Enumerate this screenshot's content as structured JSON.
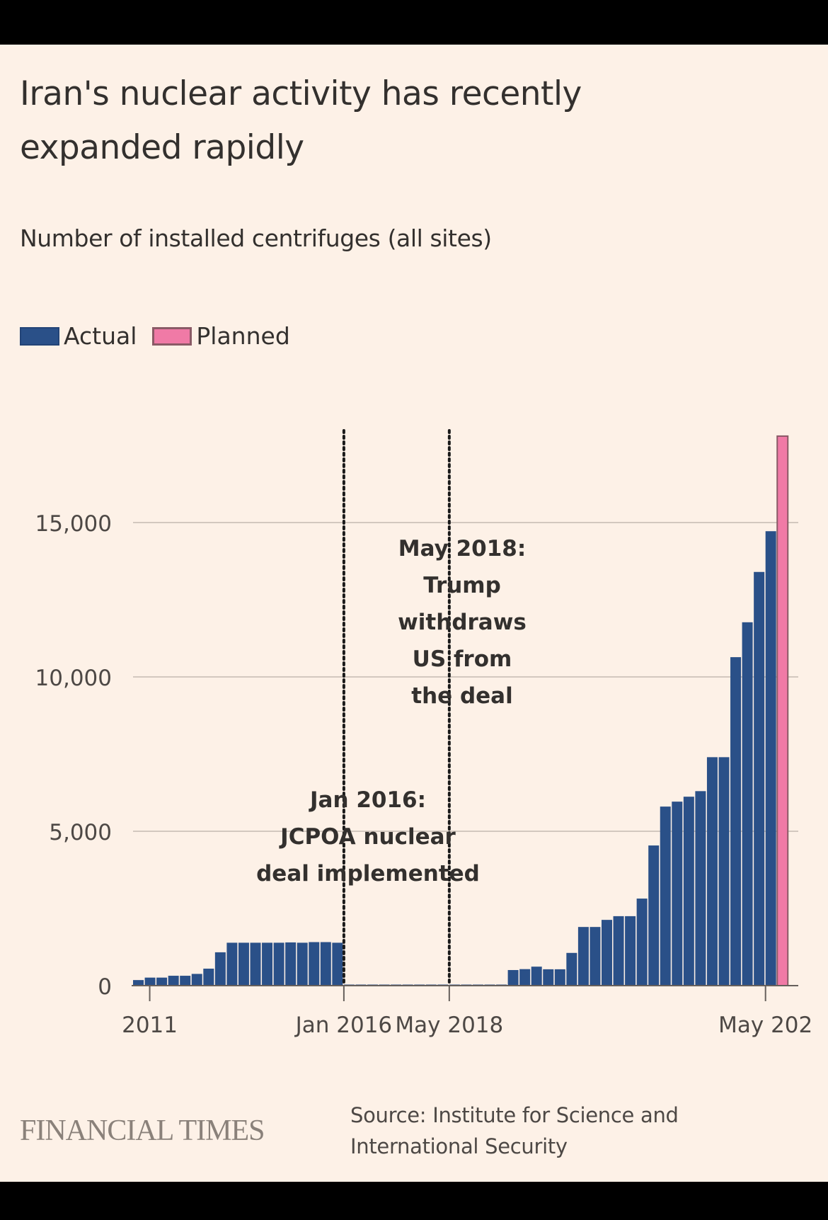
{
  "header": {
    "title": "Iran's nuclear activity has recently expanded rapidly",
    "subtitle": "Number of installed centrifuges (all sites)"
  },
  "legend": [
    {
      "label": "Actual",
      "color": "#2a5088"
    },
    {
      "label": "Planned",
      "color": "#f07aa6"
    }
  ],
  "footer": {
    "brand": "FINANCIAL TIMES",
    "source": "Source: Institute for Science and International Security"
  },
  "chart_data": {
    "type": "bar",
    "title": "Iran's nuclear activity has recently expanded rapidly",
    "subtitle": "Number of installed centrifuges (all sites)",
    "xlabel": "",
    "ylabel": "Number of installed centrifuges (all sites)",
    "ylim": [
      0,
      18000
    ],
    "yticks": [
      0,
      5000,
      10000,
      15000
    ],
    "ytick_labels": [
      "0",
      "5,000",
      "10,000",
      "15,000"
    ],
    "grid": true,
    "legend_position": "top-left",
    "xtick_labels": [
      {
        "label": "2011",
        "bar_index": 1
      },
      {
        "label": "Jan 2016",
        "bar_index": 18
      },
      {
        "label": "May 2018",
        "bar_index": 27
      },
      {
        "label": "May 202",
        "bar_index": 54
      }
    ],
    "annotations": [
      {
        "bar_index": 18,
        "lines": [
          "Jan 2016:",
          "JCPOA nuclear",
          "deal implemented"
        ]
      },
      {
        "bar_index": 27,
        "lines": [
          "May 2018:",
          "Trump",
          "withdraws",
          "US from",
          "the deal"
        ]
      }
    ],
    "series": [
      {
        "name": "Actual",
        "color": "#2a5088",
        "values": [
          180,
          260,
          260,
          320,
          320,
          380,
          550,
          1080,
          1390,
          1390,
          1390,
          1390,
          1390,
          1400,
          1390,
          1410,
          1410,
          1390,
          20,
          20,
          20,
          20,
          20,
          20,
          20,
          20,
          20,
          20,
          20,
          20,
          20,
          20,
          505,
          535,
          615,
          530,
          530,
          1060,
          1900,
          1900,
          2130,
          2250,
          2250,
          2820,
          4540,
          5800,
          5960,
          6120,
          6300,
          7400,
          7400,
          10640,
          11770,
          13400,
          14720,
          null
        ]
      },
      {
        "name": "Planned",
        "color": "#f07aa6",
        "values": [
          null,
          null,
          null,
          null,
          null,
          null,
          null,
          null,
          null,
          null,
          null,
          null,
          null,
          null,
          null,
          null,
          null,
          null,
          null,
          null,
          null,
          null,
          null,
          null,
          null,
          null,
          null,
          null,
          null,
          null,
          null,
          null,
          null,
          null,
          null,
          null,
          null,
          null,
          null,
          null,
          null,
          null,
          null,
          null,
          null,
          null,
          null,
          null,
          null,
          null,
          null,
          null,
          null,
          null,
          null,
          17800
        ]
      }
    ]
  }
}
